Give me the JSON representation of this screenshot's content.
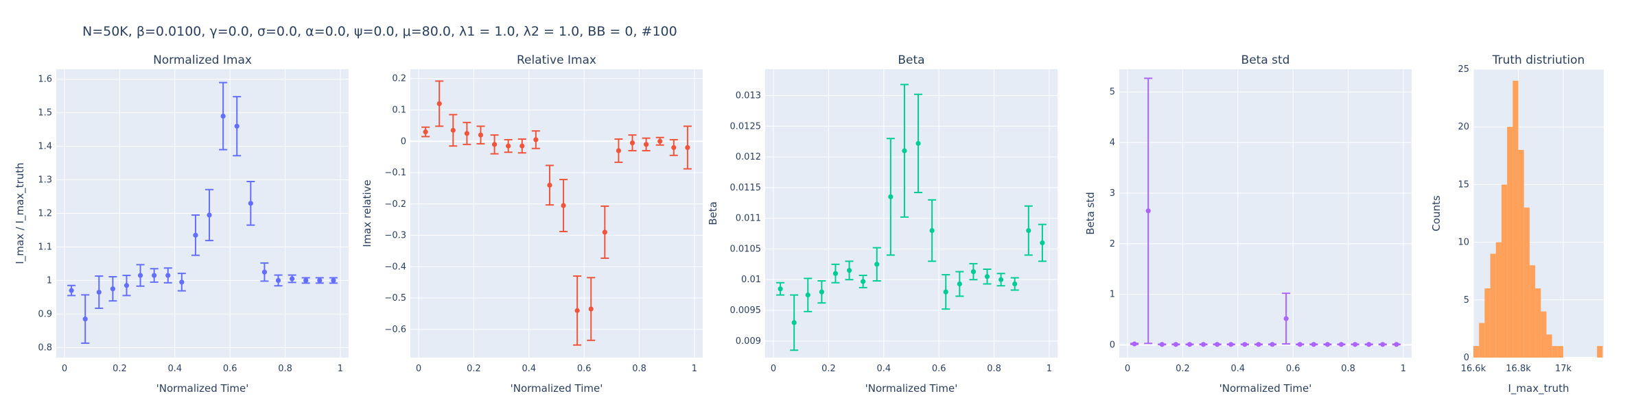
{
  "figure": {
    "title": "N=50K, β=0.0100, γ=0.0, σ=0.0,  α=0.0, ψ=0.0, μ=80.0, λ1 = 1.0, λ2 = 1.0, BB = 0, #100"
  },
  "chart_data": [
    {
      "type": "scatter",
      "title": "Normalized Imax",
      "xlabel": "'Normalized Time'",
      "ylabel": "I_max / I_max_truth",
      "color": "#636efa",
      "xlim": [
        -0.03,
        1.03
      ],
      "ylim": [
        0.77,
        1.63
      ],
      "xticks": [
        0,
        0.2,
        0.4,
        0.6,
        0.8,
        1
      ],
      "xtick_labels": [
        "0",
        "0.2",
        "0.4",
        "0.6",
        "0.8",
        "1"
      ],
      "yticks": [
        0.8,
        0.9,
        1.0,
        1.1,
        1.2,
        1.3,
        1.4,
        1.5,
        1.6
      ],
      "ytick_labels": [
        "0.8",
        "0.9",
        "1",
        "1.1",
        "1.2",
        "1.3",
        "1.4",
        "1.5",
        "1.6"
      ],
      "x": [
        0.025,
        0.075,
        0.125,
        0.175,
        0.225,
        0.275,
        0.325,
        0.375,
        0.425,
        0.475,
        0.525,
        0.575,
        0.625,
        0.675,
        0.725,
        0.775,
        0.825,
        0.875,
        0.925,
        0.975
      ],
      "y": [
        0.97,
        0.885,
        0.965,
        0.975,
        0.985,
        1.015,
        1.015,
        1.015,
        0.995,
        1.135,
        1.195,
        1.49,
        1.46,
        1.23,
        1.025,
        1.0,
        1.005,
        1.0,
        1.0,
        1.0
      ],
      "err": [
        0.015,
        0.072,
        0.048,
        0.036,
        0.03,
        0.032,
        0.02,
        0.022,
        0.026,
        0.06,
        0.076,
        0.1,
        0.088,
        0.065,
        0.027,
        0.016,
        0.011,
        0.008,
        0.008,
        0.008
      ]
    },
    {
      "type": "scatter",
      "title": "Relative Imax",
      "xlabel": "'Normalized Time'",
      "ylabel": "Imax relative",
      "color": "#ef553b",
      "xlim": [
        -0.03,
        1.03
      ],
      "ylim": [
        -0.69,
        0.23
      ],
      "xticks": [
        0,
        0.2,
        0.4,
        0.6,
        0.8,
        1
      ],
      "xtick_labels": [
        "0",
        "0.2",
        "0.4",
        "0.6",
        "0.8",
        "1"
      ],
      "yticks": [
        -0.6,
        -0.5,
        -0.4,
        -0.3,
        -0.2,
        -0.1,
        0,
        0.1,
        0.2
      ],
      "ytick_labels": [
        "−0.6",
        "−0.5",
        "−0.4",
        "−0.3",
        "−0.2",
        "−0.1",
        "0",
        "0.1",
        "0.2"
      ],
      "x": [
        0.025,
        0.075,
        0.125,
        0.175,
        0.225,
        0.275,
        0.325,
        0.375,
        0.425,
        0.475,
        0.525,
        0.575,
        0.625,
        0.675,
        0.725,
        0.775,
        0.825,
        0.875,
        0.925,
        0.975
      ],
      "y": [
        0.03,
        0.12,
        0.035,
        0.025,
        0.02,
        -0.01,
        -0.015,
        -0.015,
        0.005,
        -0.14,
        -0.205,
        -0.54,
        -0.535,
        -0.29,
        -0.03,
        -0.005,
        -0.01,
        0.0,
        -0.02,
        -0.02
      ],
      "err": [
        0.015,
        0.072,
        0.05,
        0.035,
        0.028,
        0.03,
        0.02,
        0.022,
        0.028,
        0.063,
        0.083,
        0.11,
        0.1,
        0.083,
        0.037,
        0.025,
        0.02,
        0.012,
        0.025,
        0.068
      ]
    },
    {
      "type": "scatter",
      "title": "Beta",
      "xlabel": "'Normalized Time'",
      "ylabel": "Beta",
      "color": "#00cc96",
      "xlim": [
        -0.03,
        1.03
      ],
      "ylim": [
        0.00873,
        0.01343
      ],
      "xticks": [
        0,
        0.2,
        0.4,
        0.6,
        0.8,
        1
      ],
      "xtick_labels": [
        "0",
        "0.2",
        "0.4",
        "0.6",
        "0.8",
        "1"
      ],
      "yticks": [
        0.009,
        0.0095,
        0.01,
        0.0105,
        0.011,
        0.0115,
        0.012,
        0.0125,
        0.013
      ],
      "ytick_labels": [
        "0.009",
        "0.0095",
        "0.01",
        "0.0105",
        "0.011",
        "0.0115",
        "0.012",
        "0.0125",
        "0.013"
      ],
      "x": [
        0.025,
        0.075,
        0.125,
        0.175,
        0.225,
        0.275,
        0.325,
        0.375,
        0.425,
        0.475,
        0.525,
        0.575,
        0.625,
        0.675,
        0.725,
        0.775,
        0.825,
        0.875,
        0.925,
        0.975
      ],
      "y": [
        0.00985,
        0.0093,
        0.00975,
        0.0098,
        0.0101,
        0.01015,
        0.00997,
        0.01025,
        0.01135,
        0.0121,
        0.01222,
        0.0108,
        0.0098,
        0.00993,
        0.01013,
        0.01005,
        0.01,
        0.00993,
        0.0108,
        0.0106
      ],
      "err": [
        0.0001,
        0.00045,
        0.00027,
        0.00018,
        0.00015,
        0.00015,
        0.0001,
        0.00027,
        0.00095,
        0.00108,
        0.0008,
        0.0005,
        0.00028,
        0.0002,
        0.00013,
        0.00012,
        0.0001,
        0.0001,
        0.0004,
        0.0003
      ]
    },
    {
      "type": "scatter",
      "title": "Beta std",
      "xlabel": "'Normalized Time'",
      "ylabel": "Beta std",
      "color": "#ab63fa",
      "xlim": [
        -0.03,
        1.03
      ],
      "ylim": [
        -0.25,
        5.45
      ],
      "xticks": [
        0,
        0.2,
        0.4,
        0.6,
        0.8,
        1
      ],
      "xtick_labels": [
        "0",
        "0.2",
        "0.4",
        "0.6",
        "0.8",
        "1"
      ],
      "yticks": [
        0,
        1,
        2,
        3,
        4,
        5
      ],
      "ytick_labels": [
        "0",
        "1",
        "2",
        "3",
        "4",
        "5"
      ],
      "x": [
        0.025,
        0.075,
        0.125,
        0.175,
        0.225,
        0.275,
        0.325,
        0.375,
        0.425,
        0.475,
        0.525,
        0.575,
        0.625,
        0.675,
        0.725,
        0.775,
        0.825,
        0.875,
        0.925,
        0.975
      ],
      "y": [
        0.02,
        2.65,
        0.01,
        0.01,
        0.01,
        0.01,
        0.01,
        0.01,
        0.01,
        0.01,
        0.01,
        0.52,
        0.01,
        0.01,
        0.01,
        0.01,
        0.01,
        0.01,
        0.01,
        0.01
      ],
      "err": [
        0.01,
        2.62,
        0.005,
        0.005,
        0.005,
        0.005,
        0.005,
        0.005,
        0.005,
        0.005,
        0.005,
        0.5,
        0.005,
        0.005,
        0.005,
        0.005,
        0.005,
        0.005,
        0.005,
        0.005
      ]
    },
    {
      "type": "bar",
      "title": "Truth distriution",
      "xlabel": "I_max_truth",
      "ylabel": "Counts",
      "color": "#ffa15a",
      "xlim": [
        16600,
        17180
      ],
      "ylim": [
        0,
        25
      ],
      "xticks": [
        16600,
        16800,
        17000
      ],
      "xtick_labels": [
        "16.6k",
        "16.8k",
        "17k"
      ],
      "yticks": [
        0,
        5,
        10,
        15,
        20,
        25
      ],
      "ytick_labels": [
        "0",
        "5",
        "10",
        "15",
        "20",
        "25"
      ],
      "bin_width": 25,
      "bin_starts": [
        16600,
        16625,
        16650,
        16675,
        16700,
        16725,
        16750,
        16775,
        16800,
        16825,
        16850,
        16875,
        16900,
        16925,
        16950,
        16975,
        17000,
        17025,
        17050,
        17075,
        17100,
        17125,
        17150
      ],
      "counts": [
        1,
        3,
        6,
        9,
        10,
        15,
        20,
        24,
        18,
        13,
        8,
        6,
        4,
        2,
        1,
        1,
        0,
        0,
        0,
        0,
        0,
        0,
        1
      ]
    }
  ]
}
